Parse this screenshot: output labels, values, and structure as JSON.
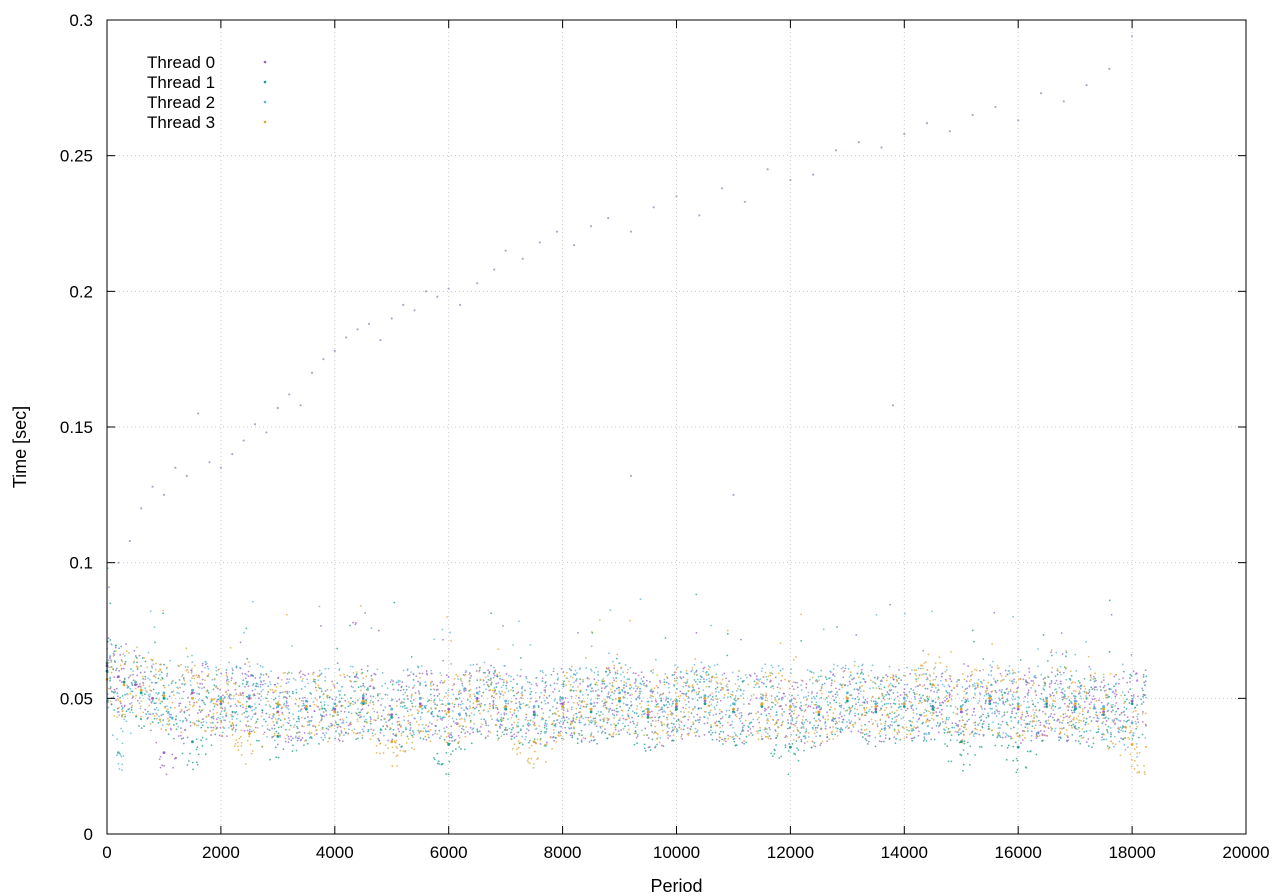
{
  "chart_data": {
    "type": "scatter",
    "title": "",
    "xlabel": "Period",
    "ylabel": "Time [sec]",
    "xlim": [
      0,
      20000
    ],
    "ylim": [
      0,
      0.3
    ],
    "xticks": [
      0,
      2000,
      4000,
      6000,
      8000,
      10000,
      12000,
      14000,
      16000,
      18000,
      20000
    ],
    "yticks": [
      0,
      0.05,
      0.1,
      0.15,
      0.2,
      0.25,
      0.3
    ],
    "xtick_labels": [
      "0",
      "2000",
      "4000",
      "6000",
      "8000",
      "10000",
      "12000",
      "14000",
      "16000",
      "18000",
      "20000"
    ],
    "ytick_labels": [
      "0",
      "0.05",
      "0.1",
      "0.15",
      "0.2",
      "0.25",
      "0.3"
    ],
    "grid": true,
    "legend_position": "top-left",
    "x_max_observed": 18250,
    "series": [
      {
        "name": "Thread 0",
        "color": "#9b5fcf",
        "marker": "dot",
        "points": [
          [
            0,
            0.062
          ],
          [
            200,
            0.058
          ],
          [
            500,
            0.055
          ],
          [
            800,
            0.05
          ],
          [
            1000,
            0.03
          ],
          [
            1500,
            0.052
          ],
          [
            2000,
            0.048
          ],
          [
            2500,
            0.05
          ],
          [
            3000,
            0.045
          ],
          [
            3500,
            0.047
          ],
          [
            4000,
            0.046
          ],
          [
            4500,
            0.05
          ],
          [
            5000,
            0.044
          ],
          [
            5500,
            0.048
          ],
          [
            6000,
            0.046
          ],
          [
            6500,
            0.05
          ],
          [
            7000,
            0.047
          ],
          [
            7500,
            0.045
          ],
          [
            8000,
            0.048
          ],
          [
            8500,
            0.046
          ],
          [
            9000,
            0.05
          ],
          [
            9500,
            0.044
          ],
          [
            10000,
            0.047
          ],
          [
            10500,
            0.049
          ],
          [
            11000,
            0.046
          ],
          [
            11500,
            0.048
          ],
          [
            12000,
            0.047
          ],
          [
            12500,
            0.045
          ],
          [
            13000,
            0.05
          ],
          [
            13500,
            0.046
          ],
          [
            14000,
            0.048
          ],
          [
            14500,
            0.047
          ],
          [
            15000,
            0.045
          ],
          [
            15500,
            0.049
          ],
          [
            16000,
            0.046
          ],
          [
            16500,
            0.048
          ],
          [
            17000,
            0.047
          ],
          [
            17500,
            0.045
          ],
          [
            18000,
            0.049
          ]
        ]
      },
      {
        "name": "Thread 1",
        "color": "#1a9e8f",
        "marker": "dot",
        "points": [
          [
            0,
            0.06
          ],
          [
            300,
            0.056
          ],
          [
            600,
            0.052
          ],
          [
            1000,
            0.05
          ],
          [
            1500,
            0.034
          ],
          [
            2000,
            0.049
          ],
          [
            2500,
            0.047
          ],
          [
            3000,
            0.036
          ],
          [
            3500,
            0.046
          ],
          [
            4000,
            0.045
          ],
          [
            4500,
            0.048
          ],
          [
            5000,
            0.043
          ],
          [
            5500,
            0.047
          ],
          [
            6000,
            0.033
          ],
          [
            6500,
            0.049
          ],
          [
            7000,
            0.046
          ],
          [
            7500,
            0.044
          ],
          [
            8000,
            0.047
          ],
          [
            8500,
            0.045
          ],
          [
            9000,
            0.049
          ],
          [
            9500,
            0.043
          ],
          [
            10000,
            0.046
          ],
          [
            10500,
            0.048
          ],
          [
            11000,
            0.045
          ],
          [
            11500,
            0.047
          ],
          [
            12000,
            0.032
          ],
          [
            12500,
            0.044
          ],
          [
            13000,
            0.049
          ],
          [
            13500,
            0.045
          ],
          [
            14000,
            0.047
          ],
          [
            14500,
            0.046
          ],
          [
            15000,
            0.034
          ],
          [
            15500,
            0.048
          ],
          [
            16000,
            0.032
          ],
          [
            16500,
            0.047
          ],
          [
            17000,
            0.046
          ],
          [
            17500,
            0.044
          ],
          [
            18000,
            0.048
          ]
        ]
      },
      {
        "name": "Thread 2",
        "color": "#5ab4d6",
        "marker": "dot",
        "points": [
          [
            0,
            0.063
          ],
          [
            200,
            0.03
          ],
          [
            500,
            0.056
          ],
          [
            1000,
            0.052
          ],
          [
            1500,
            0.053
          ],
          [
            2000,
            0.05
          ],
          [
            2500,
            0.051
          ],
          [
            3000,
            0.047
          ],
          [
            3500,
            0.049
          ],
          [
            4000,
            0.048
          ],
          [
            4500,
            0.051
          ],
          [
            5000,
            0.046
          ],
          [
            5500,
            0.05
          ],
          [
            6000,
            0.048
          ],
          [
            6500,
            0.052
          ],
          [
            7000,
            0.049
          ],
          [
            7500,
            0.047
          ],
          [
            8000,
            0.05
          ],
          [
            8500,
            0.048
          ],
          [
            9000,
            0.052
          ],
          [
            9500,
            0.046
          ],
          [
            10000,
            0.049
          ],
          [
            10500,
            0.051
          ],
          [
            11000,
            0.048
          ],
          [
            11500,
            0.05
          ],
          [
            12000,
            0.049
          ],
          [
            12500,
            0.047
          ],
          [
            13000,
            0.052
          ],
          [
            13500,
            0.048
          ],
          [
            14000,
            0.05
          ],
          [
            14500,
            0.049
          ],
          [
            15000,
            0.047
          ],
          [
            15500,
            0.051
          ],
          [
            16000,
            0.048
          ],
          [
            16500,
            0.05
          ],
          [
            17000,
            0.049
          ],
          [
            17500,
            0.047
          ],
          [
            18000,
            0.041
          ]
        ]
      },
      {
        "name": "Thread 3",
        "color": "#e0a830",
        "marker": "dot",
        "points": [
          [
            0,
            0.057
          ],
          [
            300,
            0.055
          ],
          [
            600,
            0.053
          ],
          [
            1000,
            0.051
          ],
          [
            1500,
            0.05
          ],
          [
            2000,
            0.049
          ],
          [
            2500,
            0.037
          ],
          [
            3000,
            0.048
          ],
          [
            3500,
            0.047
          ],
          [
            4000,
            0.045
          ],
          [
            4500,
            0.049
          ],
          [
            5000,
            0.034
          ],
          [
            5500,
            0.047
          ],
          [
            6000,
            0.045
          ],
          [
            6500,
            0.049
          ],
          [
            7000,
            0.047
          ],
          [
            7500,
            0.034
          ],
          [
            8000,
            0.047
          ],
          [
            8500,
            0.046
          ],
          [
            9000,
            0.05
          ],
          [
            9500,
            0.045
          ],
          [
            10000,
            0.048
          ],
          [
            10500,
            0.05
          ],
          [
            11000,
            0.046
          ],
          [
            11500,
            0.048
          ],
          [
            12000,
            0.047
          ],
          [
            12500,
            0.045
          ],
          [
            13000,
            0.05
          ],
          [
            13500,
            0.047
          ],
          [
            14000,
            0.048
          ],
          [
            14500,
            0.055
          ],
          [
            15000,
            0.046
          ],
          [
            15500,
            0.05
          ],
          [
            16000,
            0.047
          ],
          [
            16500,
            0.049
          ],
          [
            17000,
            0.048
          ],
          [
            17500,
            0.046
          ],
          [
            18000,
            0.033
          ]
        ]
      }
    ],
    "outliers": {
      "color": "#b0a8c8",
      "points": [
        [
          200,
          0.1
        ],
        [
          400,
          0.108
        ],
        [
          600,
          0.12
        ],
        [
          800,
          0.128
        ],
        [
          1000,
          0.125
        ],
        [
          1200,
          0.135
        ],
        [
          1400,
          0.132
        ],
        [
          1600,
          0.155
        ],
        [
          1800,
          0.137
        ],
        [
          2000,
          0.135
        ],
        [
          2200,
          0.14
        ],
        [
          2400,
          0.145
        ],
        [
          2600,
          0.151
        ],
        [
          2800,
          0.148
        ],
        [
          3000,
          0.157
        ],
        [
          3200,
          0.162
        ],
        [
          3400,
          0.158
        ],
        [
          3600,
          0.17
        ],
        [
          3800,
          0.175
        ],
        [
          4000,
          0.178
        ],
        [
          4200,
          0.183
        ],
        [
          4400,
          0.186
        ],
        [
          4600,
          0.188
        ],
        [
          4800,
          0.182
        ],
        [
          5000,
          0.19
        ],
        [
          5200,
          0.195
        ],
        [
          5400,
          0.193
        ],
        [
          5600,
          0.2
        ],
        [
          5800,
          0.198
        ],
        [
          6000,
          0.201
        ],
        [
          6200,
          0.195
        ],
        [
          6500,
          0.203
        ],
        [
          6800,
          0.208
        ],
        [
          7000,
          0.215
        ],
        [
          7300,
          0.212
        ],
        [
          7600,
          0.218
        ],
        [
          7900,
          0.222
        ],
        [
          8200,
          0.217
        ],
        [
          8500,
          0.224
        ],
        [
          8800,
          0.227
        ],
        [
          9200,
          0.222
        ],
        [
          9600,
          0.231
        ],
        [
          10000,
          0.235
        ],
        [
          10400,
          0.228
        ],
        [
          10800,
          0.238
        ],
        [
          11200,
          0.233
        ],
        [
          11600,
          0.245
        ],
        [
          12000,
          0.241
        ],
        [
          12400,
          0.243
        ],
        [
          12800,
          0.252
        ],
        [
          13200,
          0.255
        ],
        [
          13600,
          0.253
        ],
        [
          14000,
          0.258
        ],
        [
          14400,
          0.262
        ],
        [
          14800,
          0.259
        ],
        [
          15200,
          0.265
        ],
        [
          15600,
          0.268
        ],
        [
          16000,
          0.263
        ],
        [
          16400,
          0.273
        ],
        [
          16800,
          0.27
        ],
        [
          17200,
          0.276
        ],
        [
          17600,
          0.282
        ],
        [
          18000,
          0.294
        ],
        [
          11000,
          0.125
        ],
        [
          13800,
          0.158
        ],
        [
          9200,
          0.132
        ]
      ]
    }
  }
}
